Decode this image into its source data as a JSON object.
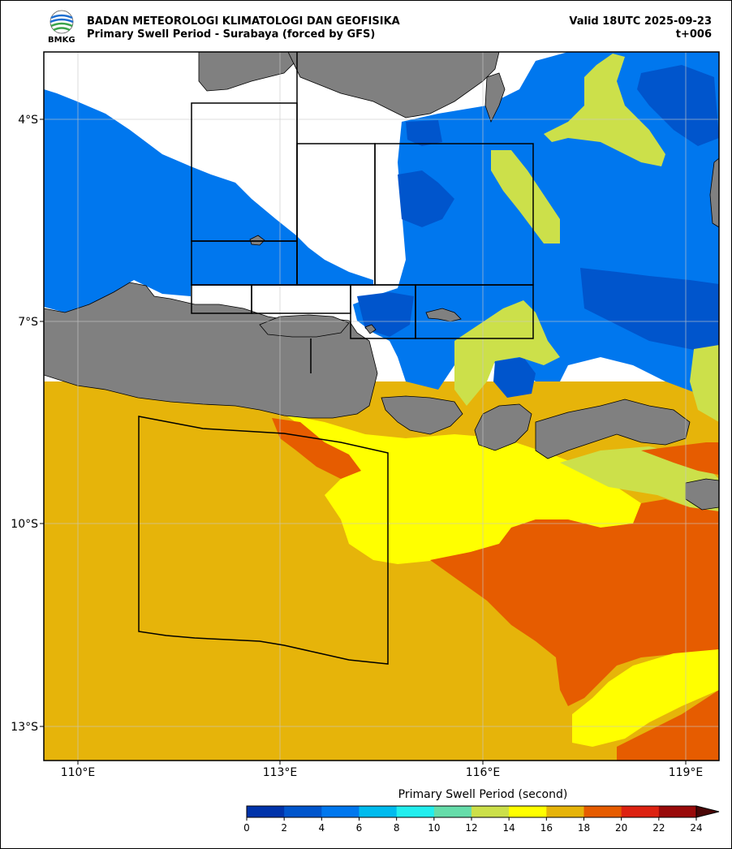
{
  "header": {
    "agency": "BADAN METEOROLOGI KLIMATOLOGI DAN GEOFISIKA",
    "product": "Primary Swell Period - Surabaya (forced by GFS)",
    "valid": "Valid 18UTC 2025-09-23",
    "step": "t+006",
    "logo_text": "BMKG"
  },
  "axes": {
    "lat_labels": [
      "4°S",
      "7°S",
      "10°S",
      "13°S"
    ],
    "lon_labels": [
      "110°E",
      "113°E",
      "116°E",
      "119°E"
    ]
  },
  "colorbar": {
    "label": "Primary Swell Period (second)",
    "ticks": [
      "0",
      "2",
      "4",
      "6",
      "8",
      "10",
      "12",
      "14",
      "16",
      "18",
      "20",
      "22",
      "24"
    ],
    "colors": [
      "#0033aa",
      "#0055cc",
      "#0077ee",
      "#00bbee",
      "#22eeee",
      "#66ddaa",
      "#cce04a",
      "#ffff00",
      "#e6b40a",
      "#e65c00",
      "#dd2211",
      "#990a0a"
    ],
    "extend_color": "#4a0606"
  },
  "map_colors": {
    "land": "#808080",
    "sea_blue_dark": "#0055cc",
    "sea_blue": "#0077ee",
    "sea_green": "#cce04a",
    "sea_yellow": "#ffff00",
    "sea_orange": "#e6b40a",
    "sea_red": "#e65c00",
    "nodata": "#ffffff"
  }
}
